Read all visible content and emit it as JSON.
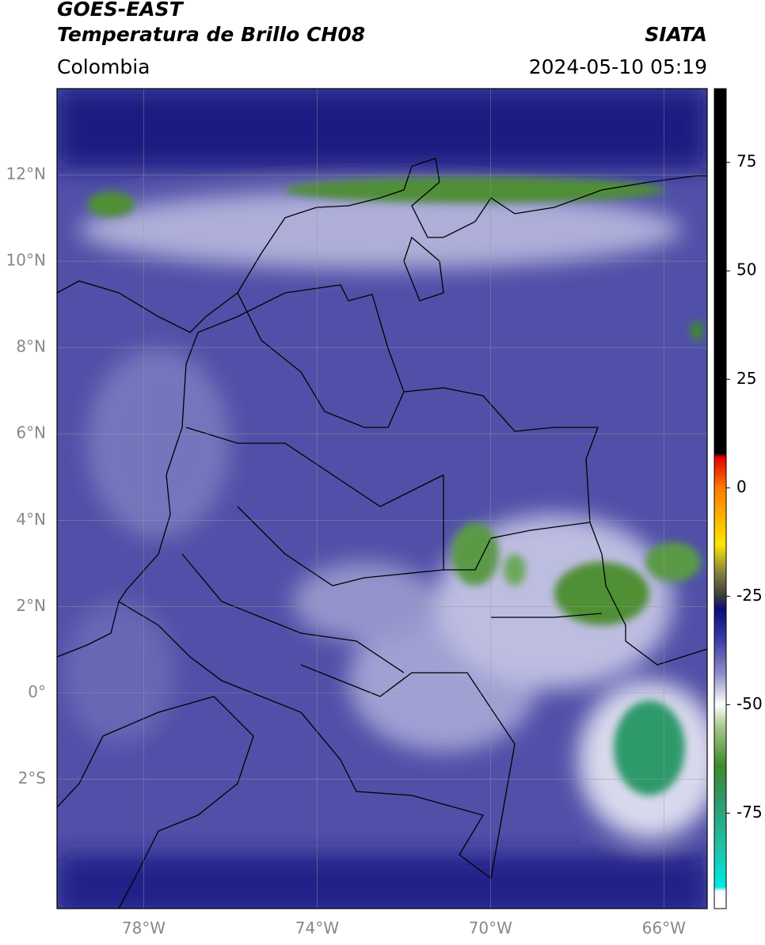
{
  "chart_data": {
    "type": "map",
    "title": "GOES-EAST",
    "subtitle": "Temperatura de Brillo CH08",
    "source": "SIATA",
    "region": "Colombia",
    "timestamp": "2024-05-10 05:19",
    "xlim": [
      -80,
      -65
    ],
    "ylim": [
      -5,
      14
    ],
    "xticks": [
      {
        "value": -78,
        "label": "78°W"
      },
      {
        "value": -74,
        "label": "74°W"
      },
      {
        "value": -70,
        "label": "70°W"
      },
      {
        "value": -66,
        "label": "66°W"
      }
    ],
    "yticks": [
      {
        "value": 12,
        "label": "12°N"
      },
      {
        "value": 10,
        "label": "10°N"
      },
      {
        "value": 8,
        "label": "8°N"
      },
      {
        "value": 6,
        "label": "6°N"
      },
      {
        "value": 4,
        "label": "4°N"
      },
      {
        "value": 2,
        "label": "2°N"
      },
      {
        "value": 0,
        "label": "0°"
      },
      {
        "value": -2,
        "label": "2°S"
      }
    ],
    "grid": true,
    "clim": [
      -97,
      92
    ],
    "cticks": [
      75,
      50,
      25,
      0,
      -25,
      -50,
      -75
    ],
    "colormap": [
      {
        "value": 92,
        "color": "#000000"
      },
      {
        "value": 8,
        "color": "#000000"
      },
      {
        "value": 7,
        "color": "#e60000"
      },
      {
        "value": 0,
        "color": "#ff7a00"
      },
      {
        "value": -13,
        "color": "#ffe600"
      },
      {
        "value": -19,
        "color": "#8c8a3c"
      },
      {
        "value": -25,
        "color": "#3a3a3a"
      },
      {
        "value": -28,
        "color": "#0b0b7a"
      },
      {
        "value": -35,
        "color": "#3c3ca6"
      },
      {
        "value": -43,
        "color": "#8f8fc9"
      },
      {
        "value": -50,
        "color": "#ffffff"
      },
      {
        "value": -55,
        "color": "#a8c98c"
      },
      {
        "value": -64,
        "color": "#3f8a2a"
      },
      {
        "value": -72,
        "color": "#2f9a6a"
      },
      {
        "value": -82,
        "color": "#20c0a0"
      },
      {
        "value": -92,
        "color": "#00e8e8"
      },
      {
        "value": -93,
        "color": "#ffffff"
      },
      {
        "value": -97,
        "color": "#ffffff"
      }
    ]
  }
}
